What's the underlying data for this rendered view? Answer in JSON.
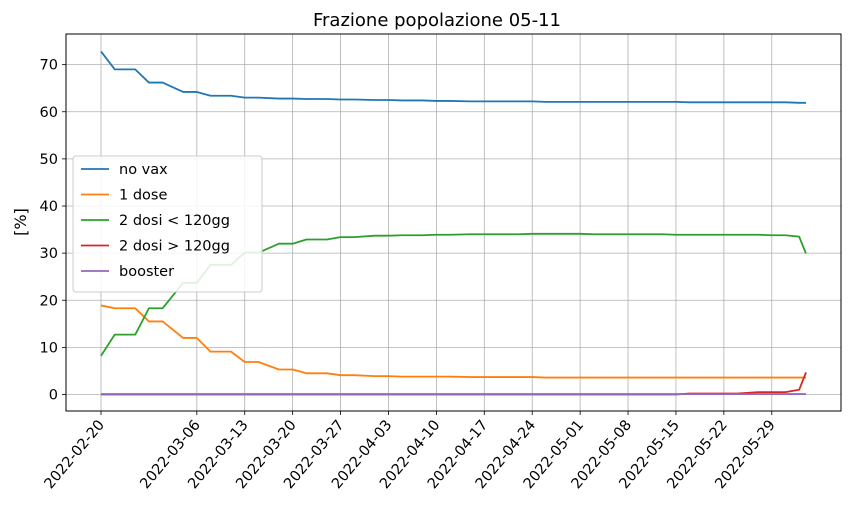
{
  "chart_data": {
    "type": "line",
    "title": "Frazione popolazione 05-11",
    "xlabel": "",
    "ylabel": "[%]",
    "ylim": [
      -3.5,
      76.5
    ],
    "yticks": [
      0,
      10,
      20,
      30,
      40,
      50,
      60,
      70
    ],
    "xtick_labels": [
      "2022-02-20",
      "2022-03-06",
      "2022-03-13",
      "2022-03-20",
      "2022-03-27",
      "2022-04-03",
      "2022-04-10",
      "2022-04-17",
      "2022-04-24",
      "2022-05-01",
      "2022-05-08",
      "2022-05-15",
      "2022-05-22",
      "2022-05-29"
    ],
    "xtick_dates": [
      "2022-02-20",
      "2022-03-06",
      "2022-03-13",
      "2022-03-20",
      "2022-03-27",
      "2022-04-03",
      "2022-04-10",
      "2022-04-17",
      "2022-04-24",
      "2022-05-01",
      "2022-05-08",
      "2022-05-15",
      "2022-05-22",
      "2022-05-29"
    ],
    "grid": true,
    "legend_position": "center-left",
    "x": [
      "2022-02-20",
      "2022-02-22",
      "2022-02-25",
      "2022-02-27",
      "2022-03-01",
      "2022-03-04",
      "2022-03-06",
      "2022-03-08",
      "2022-03-11",
      "2022-03-13",
      "2022-03-15",
      "2022-03-18",
      "2022-03-20",
      "2022-03-22",
      "2022-03-25",
      "2022-03-27",
      "2022-03-29",
      "2022-04-01",
      "2022-04-03",
      "2022-04-05",
      "2022-04-08",
      "2022-04-10",
      "2022-04-12",
      "2022-04-15",
      "2022-04-17",
      "2022-04-19",
      "2022-04-22",
      "2022-04-24",
      "2022-04-26",
      "2022-04-29",
      "2022-05-01",
      "2022-05-03",
      "2022-05-06",
      "2022-05-08",
      "2022-05-10",
      "2022-05-13",
      "2022-05-15",
      "2022-05-17",
      "2022-05-20",
      "2022-05-22",
      "2022-05-24",
      "2022-05-27",
      "2022-05-29",
      "2022-05-31",
      "2022-06-02",
      "2022-06-03"
    ],
    "series": [
      {
        "name": "no vax",
        "color": "#1f77b4",
        "values": [
          72.8,
          69.0,
          69.0,
          66.2,
          66.2,
          64.2,
          64.2,
          63.4,
          63.4,
          63.0,
          63.0,
          62.8,
          62.8,
          62.7,
          62.7,
          62.6,
          62.6,
          62.5,
          62.5,
          62.4,
          62.4,
          62.3,
          62.3,
          62.2,
          62.2,
          62.2,
          62.2,
          62.2,
          62.1,
          62.1,
          62.1,
          62.1,
          62.1,
          62.1,
          62.1,
          62.1,
          62.1,
          62.0,
          62.0,
          62.0,
          62.0,
          62.0,
          62.0,
          62.0,
          61.9,
          61.9
        ]
      },
      {
        "name": "1 dose",
        "color": "#ff7f0e",
        "values": [
          18.9,
          18.3,
          18.3,
          15.5,
          15.5,
          12.0,
          12.0,
          9.1,
          9.1,
          6.9,
          6.9,
          5.3,
          5.3,
          4.5,
          4.5,
          4.1,
          4.1,
          3.9,
          3.9,
          3.8,
          3.8,
          3.8,
          3.8,
          3.7,
          3.7,
          3.7,
          3.7,
          3.7,
          3.6,
          3.6,
          3.6,
          3.6,
          3.6,
          3.6,
          3.6,
          3.6,
          3.6,
          3.6,
          3.6,
          3.6,
          3.6,
          3.6,
          3.6,
          3.6,
          3.6,
          3.6
        ]
      },
      {
        "name": "2 dosi < 120gg",
        "color": "#2ca02c",
        "values": [
          8.2,
          12.7,
          12.7,
          18.3,
          18.3,
          23.7,
          23.7,
          27.5,
          27.5,
          30.1,
          30.1,
          32.0,
          32.0,
          32.9,
          32.9,
          33.4,
          33.4,
          33.7,
          33.7,
          33.8,
          33.8,
          33.9,
          33.9,
          34.0,
          34.0,
          34.0,
          34.0,
          34.1,
          34.1,
          34.1,
          34.1,
          34.0,
          34.0,
          34.0,
          34.0,
          34.0,
          33.9,
          33.9,
          33.9,
          33.9,
          33.9,
          33.9,
          33.8,
          33.8,
          33.5,
          29.9
        ]
      },
      {
        "name": "2 dosi > 120gg",
        "color": "#d62728",
        "values": [
          0,
          0,
          0,
          0,
          0,
          0,
          0,
          0,
          0,
          0,
          0,
          0,
          0,
          0,
          0,
          0,
          0,
          0,
          0,
          0,
          0,
          0,
          0,
          0,
          0,
          0,
          0,
          0,
          0,
          0,
          0,
          0,
          0,
          0,
          0,
          0,
          0,
          0.2,
          0.2,
          0.2,
          0.2,
          0.5,
          0.5,
          0.5,
          1.0,
          4.7
        ]
      },
      {
        "name": "booster",
        "color": "#9467bd",
        "values": [
          0.1,
          0.1,
          0.1,
          0.1,
          0.1,
          0.1,
          0.1,
          0.1,
          0.1,
          0.1,
          0.1,
          0.1,
          0.1,
          0.1,
          0.1,
          0.1,
          0.1,
          0.1,
          0.1,
          0.1,
          0.1,
          0.1,
          0.1,
          0.1,
          0.1,
          0.1,
          0.1,
          0.1,
          0.1,
          0.1,
          0.1,
          0.1,
          0.1,
          0.1,
          0.1,
          0.1,
          0.1,
          0.1,
          0.1,
          0.1,
          0.1,
          0.1,
          0.1,
          0.1,
          0.1,
          0.1
        ]
      }
    ]
  }
}
